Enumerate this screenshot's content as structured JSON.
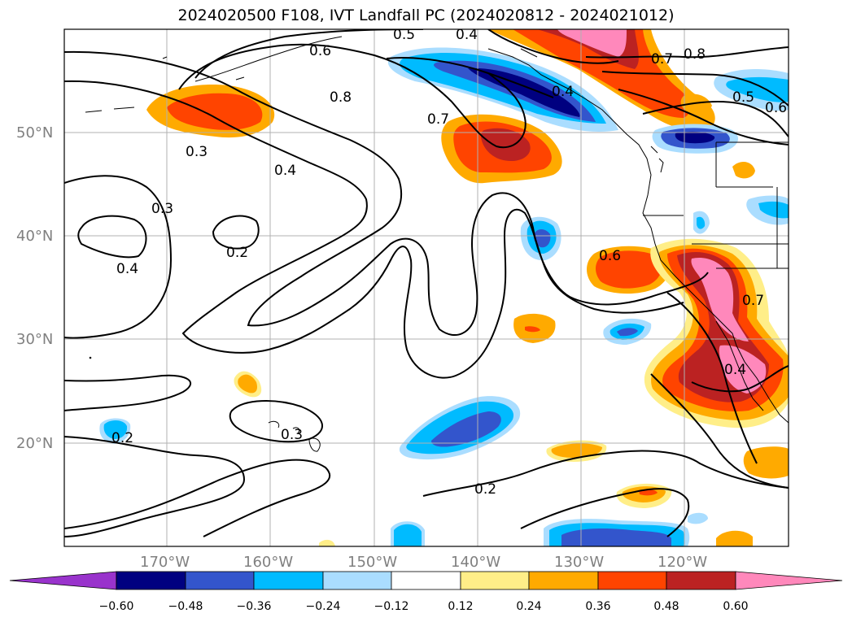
{
  "title": "2024020500 F108, IVT Landfall PC (2024020812 - 2024021012)",
  "latitude_labels": [
    "50°N",
    "40°N",
    "30°N",
    "20°N"
  ],
  "longitude_labels": [
    "170°W",
    "160°W",
    "150°W",
    "140°W",
    "130°W",
    "120°W"
  ],
  "colorbar": {
    "tick_labels": [
      "−0.60",
      "−0.48",
      "−0.36",
      "−0.24",
      "−0.12",
      "0.12",
      "0.24",
      "0.36",
      "0.48",
      "0.60"
    ],
    "colors": [
      "#9933cc",
      "#000080",
      "#3355cc",
      "#00bbff",
      "#aaddff",
      "#ffffff",
      "#ffee88",
      "#ffaa00",
      "#ff4400",
      "#bb2222",
      "#ff88bb"
    ]
  },
  "contour_labels": [
    "0.5",
    "0.4",
    "0.6",
    "0.8",
    "0.7",
    "0.8",
    "0.5",
    "0.6",
    "0.7",
    "0.3",
    "0.4",
    "0.3",
    "0.2",
    "0.4",
    "0.6",
    "0.7",
    "0.4",
    "0.2",
    "0.3",
    "0.2",
    "0.4"
  ]
}
